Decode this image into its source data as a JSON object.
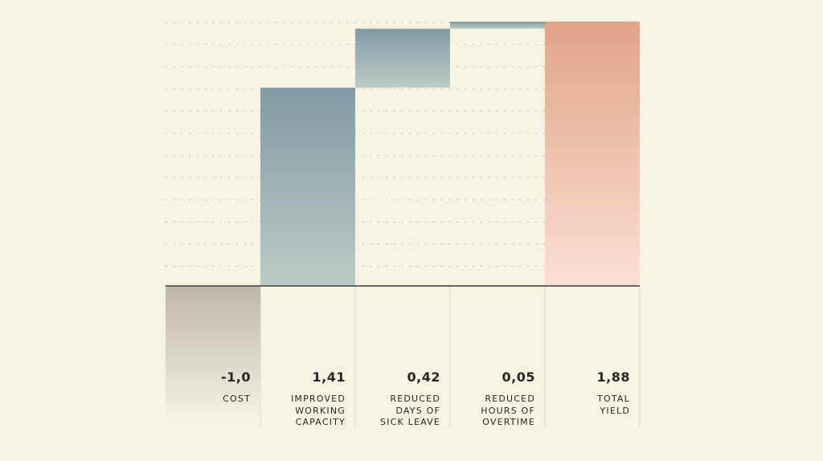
{
  "chart_data": {
    "type": "bar",
    "subtype": "waterfall",
    "categories": [
      "COST",
      "IMPROVED\nWORKING\nCAPACITY",
      "REDUCED\nDAYS OF\nSICK LEAVE",
      "REDUCED\nHOURS OF\nOVERTIME",
      "TOTAL\nYIELD"
    ],
    "values": [
      -1.0,
      1.41,
      0.42,
      0.05,
      1.88
    ],
    "value_labels": [
      "-1,0",
      "1,41",
      "0,42",
      "0,05",
      "1,88"
    ],
    "bar_kinds": [
      "negative",
      "increase",
      "increase",
      "increase",
      "total"
    ],
    "title": "",
    "xlabel": "",
    "ylabel": "",
    "ylim": [
      -1.0,
      1.88
    ],
    "grid": "dotted horizontal lines",
    "legend": "none",
    "colors": {
      "background": "#f6f3e5",
      "negative_top": "#bdb6ac",
      "negative_bottom": "#f6f3e5",
      "increase_top": "#819aa2",
      "increase_bottom": "#bccbc6",
      "total_top": "#e3a38a",
      "total_bottom": "#fae0d3",
      "axis": "#3a3a3a",
      "grid": "#c4c1b5",
      "separator": "#dcd9cd",
      "text": "#262626"
    }
  }
}
